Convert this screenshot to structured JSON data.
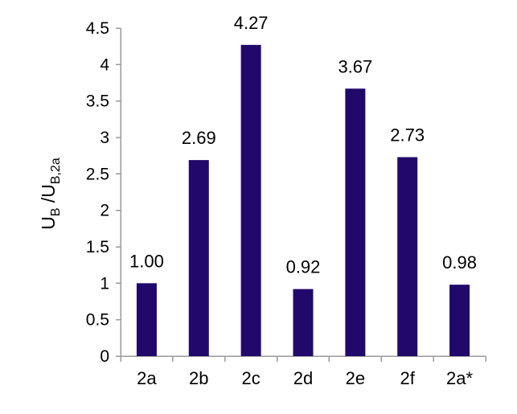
{
  "chart_data": {
    "type": "bar",
    "categories": [
      "2a",
      "2b",
      "2c",
      "2d",
      "2e",
      "2f",
      "2a*"
    ],
    "values": [
      1.0,
      2.69,
      4.27,
      0.92,
      3.67,
      2.73,
      0.98
    ],
    "data_labels": [
      "1.00",
      "2.69",
      "4.27",
      "0.92",
      "3.67",
      "2.73",
      "0.98"
    ],
    "title": "",
    "xlabel": "",
    "ylabel": {
      "parts": [
        {
          "text": "U",
          "sub": false
        },
        {
          "text": "B",
          "sub": true
        },
        {
          "text": " /U",
          "sub": false
        },
        {
          "text": "B,2a",
          "sub": true
        }
      ]
    },
    "ylim": [
      0,
      4.5
    ],
    "yticks": [
      0,
      0.5,
      1,
      1.5,
      2,
      2.5,
      3,
      3.5,
      4,
      4.5
    ],
    "ytick_labels": [
      "0",
      "0.5",
      "1",
      "1.5",
      "2",
      "2.5",
      "3",
      "3.5",
      "4",
      "4.5"
    ],
    "grid": false,
    "legend": "none",
    "bar_color": "#21086b"
  }
}
